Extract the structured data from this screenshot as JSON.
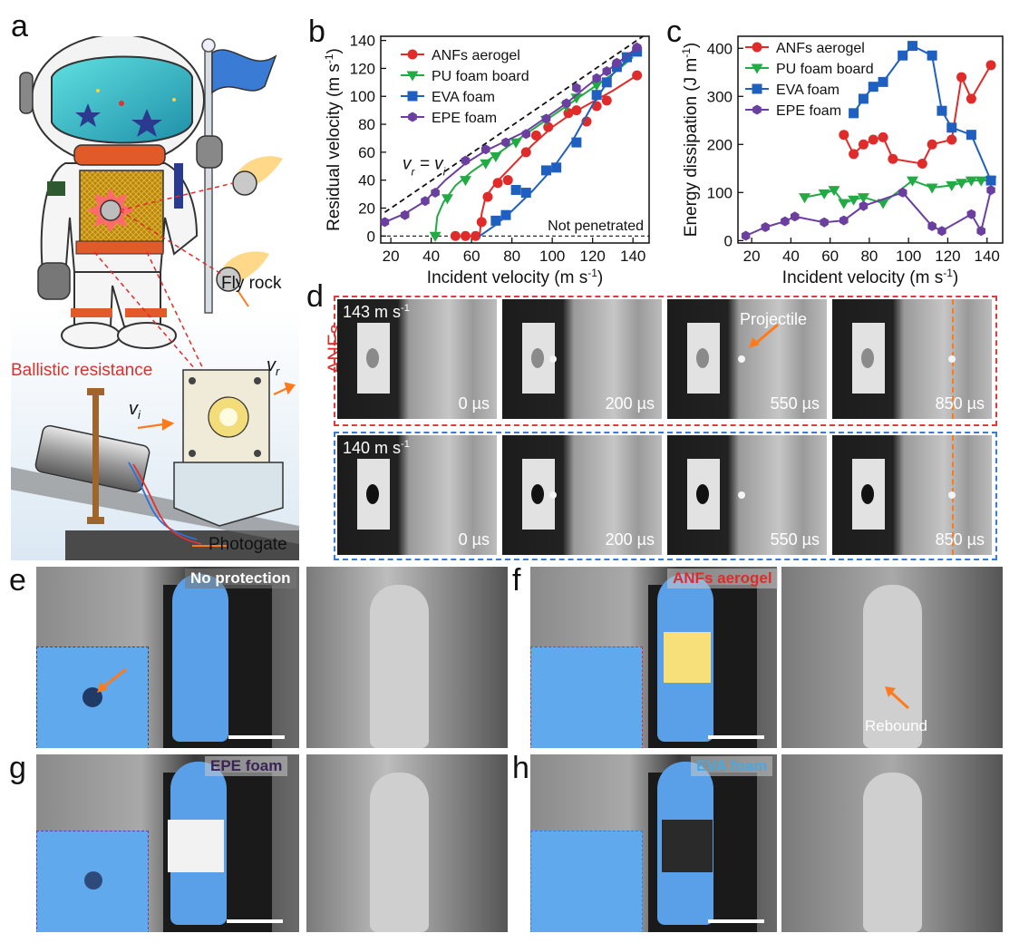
{
  "panel_labels": {
    "a": "a",
    "b": "b",
    "c": "c",
    "d": "d",
    "e": "e",
    "f": "f",
    "g": "g",
    "h": "h"
  },
  "colors": {
    "anf": "#e02b2b",
    "pu": "#22aa44",
    "eva": "#1f5fbf",
    "epe": "#6a3fa0",
    "accent": "#ff7a1a"
  },
  "panel_a": {
    "ballistic_resistance": "Ballistic resistance",
    "fly_rock": "Fly rock",
    "photogate": "Photogate",
    "vi_symbol": "v",
    "vi_sub": "i",
    "vr_symbol": "v",
    "vr_sub": "r"
  },
  "chart_data": [
    {
      "id": "b",
      "type": "line",
      "xlabel": "Incident velocity (m s",
      "xlabel_sup": "-1",
      "xlabel_end": ")",
      "ylabel": "Residual velocity (m s",
      "ylabel_sup": "-1",
      "ylabel_end": ")",
      "xlim": [
        15,
        148
      ],
      "ylim": [
        -5,
        143
      ],
      "xticks": [
        20,
        40,
        60,
        80,
        100,
        120,
        140
      ],
      "yticks": [
        0,
        20,
        40,
        60,
        80,
        100,
        120,
        140
      ],
      "annotation_eq": "v",
      "annotation_eq_sub_r": "r",
      "annotation_eq_mid": " = v",
      "annotation_eq_sub_i": "i",
      "annotation_np": "Not penetrated",
      "legend_position": "top-left",
      "series": [
        {
          "name": "ANFs aerogel",
          "color": "#e02b2b",
          "marker": "circle",
          "points": [
            [
              52,
              0
            ],
            [
              57,
              0
            ],
            [
              62,
              0
            ],
            [
              65,
              10
            ],
            [
              68,
              28
            ],
            [
              73,
              38
            ],
            [
              78,
              40
            ],
            [
              87,
              60
            ],
            [
              92,
              72
            ],
            [
              98,
              78
            ],
            [
              108,
              88
            ],
            [
              112,
              90
            ],
            [
              117,
              82
            ],
            [
              122,
              93
            ],
            [
              127,
              97
            ],
            [
              142,
              115
            ]
          ],
          "curve": [
            [
              64,
              0
            ],
            [
              65,
              16
            ],
            [
              67,
              28
            ],
            [
              72,
              38
            ],
            [
              80,
              50
            ],
            [
              90,
              65
            ],
            [
              100,
              78
            ],
            [
              110,
              88
            ],
            [
              120,
              96
            ],
            [
              130,
              104
            ],
            [
              142,
              115
            ]
          ]
        },
        {
          "name": "PU foam board",
          "color": "#22aa44",
          "marker": "triangle",
          "points": [
            [
              42,
              0
            ],
            [
              48,
              27
            ],
            [
              57,
              40
            ],
            [
              67,
              52
            ],
            [
              72,
              57
            ],
            [
              82,
              67
            ],
            [
              97,
              83
            ],
            [
              107,
              93
            ],
            [
              112,
              99
            ],
            [
              122,
              108
            ],
            [
              137,
              128
            ]
          ],
          "curve": [
            [
              42,
              0
            ],
            [
              43,
              14
            ],
            [
              46,
              24
            ],
            [
              52,
              36
            ],
            [
              60,
              46
            ],
            [
              70,
              56
            ],
            [
              80,
              66
            ],
            [
              90,
              76
            ],
            [
              100,
              86
            ],
            [
              110,
              96
            ],
            [
              120,
              106
            ],
            [
              130,
              116
            ],
            [
              140,
              128
            ]
          ]
        },
        {
          "name": "EVA foam",
          "color": "#1f5fbf",
          "marker": "square",
          "points": [
            [
              72,
              11
            ],
            [
              77,
              15
            ],
            [
              82,
              33
            ],
            [
              87,
              31
            ],
            [
              97,
              47
            ],
            [
              102,
              49
            ],
            [
              112,
              67
            ],
            [
              122,
              101
            ],
            [
              127,
              110
            ],
            [
              132,
              121
            ],
            [
              137,
              128
            ],
            [
              142,
              132
            ]
          ],
          "curve": [
            [
              64,
              0
            ],
            [
              72,
              8
            ],
            [
              80,
              18
            ],
            [
              90,
              32
            ],
            [
              100,
              48
            ],
            [
              110,
              68
            ],
            [
              120,
              94
            ],
            [
              130,
              116
            ],
            [
              142,
              133
            ]
          ]
        },
        {
          "name": "EPE foam",
          "color": "#6a3fa0",
          "marker": "hexagon",
          "points": [
            [
              17,
              10
            ],
            [
              27,
              15
            ],
            [
              37,
              25
            ],
            [
              42,
              31
            ],
            [
              57,
              54
            ],
            [
              67,
              62
            ],
            [
              77,
              67
            ],
            [
              87,
              73
            ],
            [
              97,
              84
            ],
            [
              107,
              95
            ],
            [
              112,
              106
            ],
            [
              122,
              113
            ],
            [
              127,
              118
            ],
            [
              132,
              124
            ],
            [
              142,
              135
            ]
          ],
          "curve": [
            [
              17,
              10
            ],
            [
              27,
              16
            ],
            [
              37,
              25
            ],
            [
              47,
              40
            ],
            [
              57,
              52
            ],
            [
              67,
              61
            ],
            [
              77,
              68
            ],
            [
              87,
              75
            ],
            [
              97,
              85
            ],
            [
              107,
              95
            ],
            [
              117,
              107
            ],
            [
              127,
              118
            ],
            [
              137,
              129
            ],
            [
              142,
              135
            ]
          ]
        }
      ],
      "reference_line": [
        [
          17,
          17
        ],
        [
          145,
          143
        ]
      ]
    },
    {
      "id": "c",
      "type": "line",
      "xlabel": "Incident velocity (m s",
      "xlabel_sup": "-1",
      "xlabel_end": ")",
      "ylabel": "Energy dissipation (J m",
      "ylabel_sup": "-1",
      "ylabel_end": ")",
      "xlim": [
        13,
        148
      ],
      "ylim": [
        -5,
        425
      ],
      "xticks": [
        20,
        40,
        60,
        80,
        100,
        120,
        140
      ],
      "yticks": [
        0,
        100,
        200,
        300,
        400
      ],
      "legend_position": "top-left",
      "series": [
        {
          "name": "ANFs aerogel",
          "color": "#e02b2b",
          "marker": "circle",
          "x": [
            67,
            72,
            77,
            82,
            87,
            92,
            107,
            112,
            122,
            127,
            132,
            142
          ],
          "y": [
            220,
            180,
            200,
            210,
            215,
            170,
            160,
            200,
            210,
            340,
            295,
            365
          ]
        },
        {
          "name": "PU foam board",
          "color": "#22aa44",
          "marker": "triangle",
          "x": [
            47,
            57,
            62,
            67,
            72,
            77,
            87,
            102,
            112,
            122,
            127,
            132,
            137,
            142
          ],
          "y": [
            90,
            98,
            105,
            78,
            85,
            90,
            78,
            125,
            110,
            115,
            120,
            125,
            125,
            125
          ]
        },
        {
          "name": "EVA foam",
          "color": "#1f5fbf",
          "marker": "square",
          "x": [
            72,
            77,
            82,
            87,
            97,
            102,
            112,
            117,
            122,
            132,
            142
          ],
          "y": [
            265,
            295,
            320,
            330,
            385,
            405,
            385,
            270,
            235,
            220,
            125
          ]
        },
        {
          "name": "EPE foam",
          "color": "#6a3fa0",
          "marker": "hexagon",
          "x": [
            17,
            27,
            37,
            42,
            57,
            67,
            77,
            97,
            112,
            117,
            132,
            137,
            142
          ],
          "y": [
            10,
            28,
            40,
            50,
            38,
            42,
            72,
            100,
            30,
            20,
            55,
            20,
            105
          ]
        }
      ]
    }
  ],
  "panel_d": {
    "side_label": "ANFs",
    "row1_speed": "143 m s",
    "row1_speed_sup": "-1",
    "row2_speed": "140 m s",
    "row2_speed_sup": "-1",
    "times": [
      "0 µs",
      "200 µs",
      "550 µs",
      "850 µs"
    ],
    "projectile_label": "Projectile"
  },
  "panel_e": {
    "caption": "No protection"
  },
  "panel_f": {
    "caption": "ANFs aerogel",
    "rebound": "Rebound"
  },
  "panel_g": {
    "caption": "EPE foam"
  },
  "panel_h": {
    "caption": "EVA foam"
  }
}
